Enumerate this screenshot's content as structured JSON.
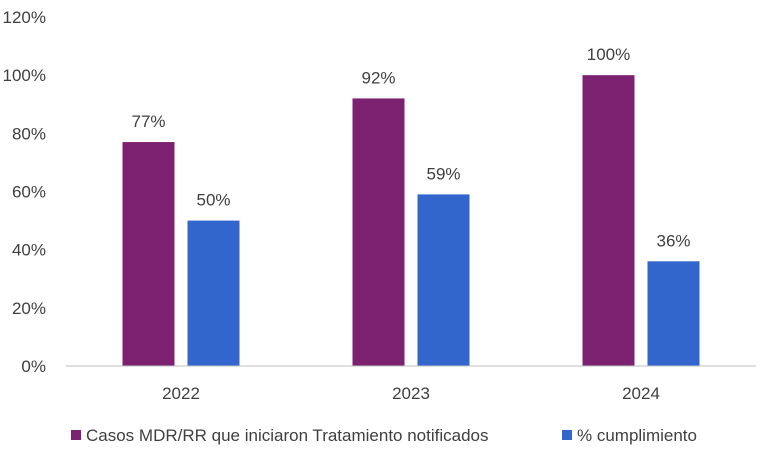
{
  "chart_data": {
    "type": "bar",
    "categories": [
      "2022",
      "2023",
      "2024"
    ],
    "series": [
      {
        "name": "Casos MDR/RR que iniciaron  Tratamiento notificados",
        "values": [
          77,
          92,
          100
        ],
        "labels": [
          "77%",
          "92%",
          "100%"
        ],
        "color": "#7B2170"
      },
      {
        "name": "% cumplimiento",
        "values": [
          50,
          59,
          36
        ],
        "labels": [
          "50%",
          "59%",
          "36%"
        ],
        "color": "#3366CC"
      }
    ],
    "ylim": [
      0,
      120
    ],
    "yticks": [
      "0%",
      "20%",
      "40%",
      "60%",
      "80%",
      "100%",
      "120%"
    ],
    "grid": false,
    "legend_position": "bottom"
  }
}
